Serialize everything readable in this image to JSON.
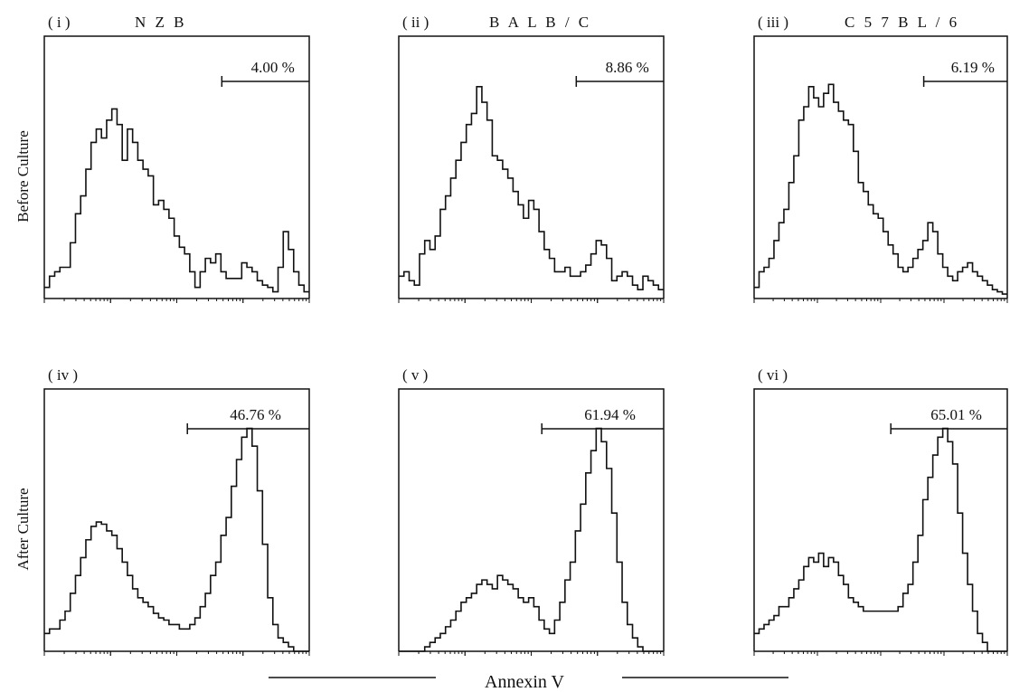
{
  "row_labels": [
    "Before Culture",
    "After Culture"
  ],
  "x_axis_label": "Annexin V",
  "chart_data": [
    {
      "type": "area",
      "panel_label": "( i )",
      "strain": "N Z B",
      "condition": "Before Culture",
      "gate_percent": "4.00 %",
      "x_scale": "log",
      "grid": false,
      "gate_range": [
        0.67,
        1.0
      ],
      "x": [
        0.0,
        0.02,
        0.04,
        0.06,
        0.08,
        0.1,
        0.12,
        0.14,
        0.16,
        0.18,
        0.2,
        0.22,
        0.24,
        0.26,
        0.28,
        0.3,
        0.32,
        0.34,
        0.36,
        0.38,
        0.4,
        0.42,
        0.44,
        0.46,
        0.48,
        0.5,
        0.52,
        0.54,
        0.56,
        0.58,
        0.6,
        0.62,
        0.64,
        0.66,
        0.68,
        0.7,
        0.72,
        0.74,
        0.76,
        0.78,
        0.8,
        0.82,
        0.84,
        0.86,
        0.88,
        0.9,
        0.92,
        0.94,
        0.96,
        0.98,
        1.0
      ],
      "values": [
        5,
        10,
        12,
        14,
        14,
        25,
        38,
        46,
        58,
        70,
        76,
        72,
        80,
        85,
        78,
        62,
        76,
        70,
        62,
        58,
        55,
        42,
        44,
        40,
        36,
        28,
        23,
        20,
        12,
        5,
        12,
        18,
        16,
        20,
        12,
        9,
        9,
        9,
        16,
        14,
        12,
        8,
        6,
        5,
        3,
        14,
        30,
        22,
        12,
        6,
        3
      ]
    },
    {
      "type": "area",
      "panel_label": "( ii )",
      "strain": "B A L B / C",
      "condition": "Before Culture",
      "gate_percent": "8.86 %",
      "x_scale": "log",
      "grid": false,
      "gate_range": [
        0.67,
        1.0
      ],
      "x": [
        0.0,
        0.02,
        0.04,
        0.06,
        0.08,
        0.1,
        0.12,
        0.14,
        0.16,
        0.18,
        0.2,
        0.22,
        0.24,
        0.26,
        0.28,
        0.3,
        0.32,
        0.34,
        0.36,
        0.38,
        0.4,
        0.42,
        0.44,
        0.46,
        0.48,
        0.5,
        0.52,
        0.54,
        0.56,
        0.58,
        0.6,
        0.62,
        0.64,
        0.66,
        0.68,
        0.7,
        0.72,
        0.74,
        0.76,
        0.78,
        0.8,
        0.82,
        0.84,
        0.86,
        0.88,
        0.9,
        0.92,
        0.94,
        0.96,
        0.98,
        1.0
      ],
      "values": [
        10,
        12,
        8,
        6,
        20,
        26,
        22,
        28,
        40,
        46,
        54,
        62,
        70,
        78,
        83,
        95,
        88,
        80,
        64,
        62,
        58,
        54,
        48,
        42,
        36,
        44,
        40,
        30,
        22,
        18,
        12,
        12,
        14,
        10,
        10,
        12,
        15,
        20,
        26,
        24,
        18,
        8,
        10,
        12,
        10,
        6,
        4,
        10,
        8,
        6,
        4
      ]
    },
    {
      "type": "area",
      "panel_label": "( iii )",
      "strain": "C 5 7 B L / 6",
      "condition": "Before Culture",
      "gate_percent": "6.19 %",
      "x_scale": "log",
      "grid": false,
      "gate_range": [
        0.67,
        1.0
      ],
      "x": [
        0.0,
        0.02,
        0.04,
        0.06,
        0.08,
        0.1,
        0.12,
        0.14,
        0.16,
        0.18,
        0.2,
        0.22,
        0.24,
        0.26,
        0.28,
        0.3,
        0.32,
        0.34,
        0.36,
        0.38,
        0.4,
        0.42,
        0.44,
        0.46,
        0.48,
        0.5,
        0.52,
        0.54,
        0.56,
        0.58,
        0.6,
        0.62,
        0.64,
        0.66,
        0.68,
        0.7,
        0.72,
        0.74,
        0.76,
        0.78,
        0.8,
        0.82,
        0.84,
        0.86,
        0.88,
        0.9,
        0.92,
        0.94,
        0.96,
        0.98,
        1.0
      ],
      "values": [
        5,
        12,
        14,
        18,
        26,
        34,
        40,
        52,
        64,
        80,
        86,
        95,
        90,
        86,
        92,
        96,
        88,
        84,
        80,
        78,
        66,
        52,
        48,
        42,
        38,
        36,
        30,
        24,
        20,
        14,
        12,
        14,
        18,
        22,
        26,
        34,
        30,
        20,
        14,
        10,
        8,
        12,
        14,
        16,
        12,
        10,
        8,
        6,
        4,
        3,
        2
      ]
    },
    {
      "type": "area",
      "panel_label": "( iv )",
      "strain": "",
      "condition": "After Culture",
      "gate_percent": "46.76 %",
      "x_scale": "log",
      "grid": false,
      "gate_range": [
        0.54,
        1.0
      ],
      "x": [
        0.0,
        0.02,
        0.04,
        0.06,
        0.08,
        0.1,
        0.12,
        0.14,
        0.16,
        0.18,
        0.2,
        0.22,
        0.24,
        0.26,
        0.28,
        0.3,
        0.32,
        0.34,
        0.36,
        0.38,
        0.4,
        0.42,
        0.44,
        0.46,
        0.48,
        0.5,
        0.52,
        0.54,
        0.56,
        0.58,
        0.6,
        0.62,
        0.64,
        0.66,
        0.68,
        0.7,
        0.72,
        0.74,
        0.76,
        0.78,
        0.8,
        0.82,
        0.84,
        0.86,
        0.88,
        0.9,
        0.92,
        0.94,
        0.96,
        0.98,
        1.0
      ],
      "values": [
        8,
        10,
        10,
        14,
        18,
        26,
        34,
        42,
        50,
        56,
        58,
        57,
        54,
        52,
        46,
        40,
        34,
        28,
        24,
        22,
        20,
        17,
        15,
        14,
        12,
        12,
        10,
        10,
        12,
        15,
        20,
        26,
        34,
        40,
        52,
        60,
        74,
        86,
        96,
        100,
        92,
        72,
        48,
        24,
        12,
        6,
        4,
        2,
        0,
        0,
        0
      ]
    },
    {
      "type": "area",
      "panel_label": "( v )",
      "strain": "",
      "condition": "After Culture",
      "gate_percent": "61.94 %",
      "x_scale": "log",
      "grid": false,
      "gate_range": [
        0.54,
        1.0
      ],
      "x": [
        0.0,
        0.02,
        0.04,
        0.06,
        0.08,
        0.1,
        0.12,
        0.14,
        0.16,
        0.18,
        0.2,
        0.22,
        0.24,
        0.26,
        0.28,
        0.3,
        0.32,
        0.34,
        0.36,
        0.38,
        0.4,
        0.42,
        0.44,
        0.46,
        0.48,
        0.5,
        0.52,
        0.54,
        0.56,
        0.58,
        0.6,
        0.62,
        0.64,
        0.66,
        0.68,
        0.7,
        0.72,
        0.74,
        0.76,
        0.78,
        0.8,
        0.82,
        0.84,
        0.86,
        0.88,
        0.9,
        0.92,
        0.94,
        0.96,
        0.98,
        1.0
      ],
      "values": [
        0,
        0,
        0,
        0,
        0,
        2,
        4,
        6,
        8,
        11,
        14,
        18,
        22,
        24,
        26,
        30,
        32,
        30,
        28,
        34,
        32,
        30,
        28,
        24,
        22,
        24,
        20,
        14,
        10,
        8,
        14,
        22,
        32,
        40,
        54,
        66,
        80,
        90,
        100,
        94,
        82,
        62,
        40,
        22,
        12,
        6,
        2,
        0,
        0,
        0,
        0
      ]
    },
    {
      "type": "area",
      "panel_label": "( vi )",
      "strain": "",
      "condition": "After Culture",
      "gate_percent": "65.01 %",
      "x_scale": "log",
      "grid": false,
      "gate_range": [
        0.54,
        1.0
      ],
      "x": [
        0.0,
        0.02,
        0.04,
        0.06,
        0.08,
        0.1,
        0.12,
        0.14,
        0.16,
        0.18,
        0.2,
        0.22,
        0.24,
        0.26,
        0.28,
        0.3,
        0.32,
        0.34,
        0.36,
        0.38,
        0.4,
        0.42,
        0.44,
        0.46,
        0.48,
        0.5,
        0.52,
        0.54,
        0.56,
        0.58,
        0.6,
        0.62,
        0.64,
        0.66,
        0.68,
        0.7,
        0.72,
        0.74,
        0.76,
        0.78,
        0.8,
        0.82,
        0.84,
        0.86,
        0.88,
        0.9,
        0.92,
        0.94,
        0.96,
        0.98,
        1.0
      ],
      "values": [
        8,
        10,
        12,
        14,
        16,
        20,
        20,
        24,
        28,
        32,
        38,
        42,
        40,
        44,
        38,
        42,
        40,
        34,
        30,
        24,
        22,
        20,
        18,
        18,
        18,
        18,
        18,
        18,
        18,
        20,
        26,
        30,
        40,
        52,
        68,
        78,
        88,
        96,
        100,
        94,
        84,
        62,
        44,
        30,
        18,
        8,
        4,
        0,
        0,
        0,
        0
      ]
    }
  ]
}
